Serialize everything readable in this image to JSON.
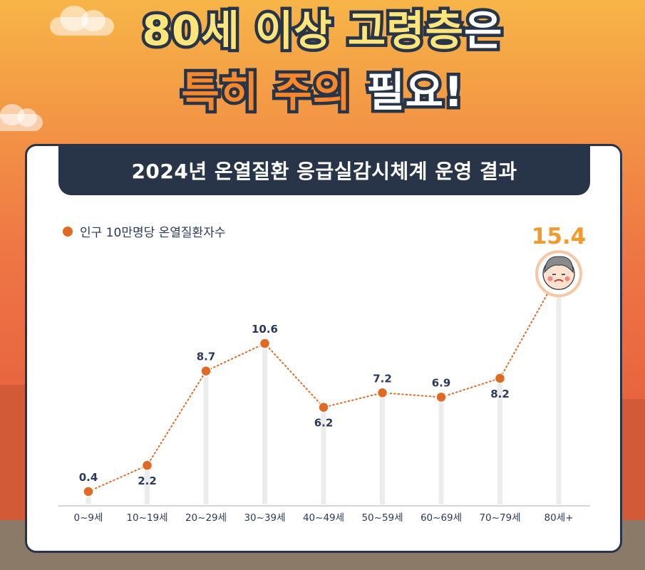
{
  "header": {
    "line1_a": "80세 이상 고령층",
    "line1_b": "은",
    "line2_a": "특히 주의",
    "line2_b": " 필요!"
  },
  "banner": {
    "title": "2024년 온열질환 응급실감시체계 운영 결과"
  },
  "colors": {
    "accent": "#e06a24",
    "navy": "#283548",
    "headline_yellow": "#fde57c",
    "headline_orange": "#f7872b",
    "peak_value": "#f39a2e"
  },
  "chart_data": {
    "type": "line",
    "categories": [
      "0~9세",
      "10~19세",
      "20~29세",
      "30~39세",
      "40~49세",
      "50~59세",
      "60~69세",
      "70~79세",
      "80세+"
    ],
    "series": [
      {
        "name": "인구 10만명당 온열질환자수",
        "values": [
          0.4,
          2.2,
          8.7,
          10.6,
          6.2,
          7.2,
          6.9,
          8.2,
          15.4
        ]
      }
    ],
    "data_labels": [
      "0.4",
      "2.2",
      "8.7",
      "10.6",
      "6.2",
      "7.2",
      "6.9",
      "8.2",
      "15.4"
    ],
    "title": "2024년 온열질환 응급실감시체계 운영 결과",
    "xlabel": "",
    "ylabel": "",
    "ylim": [
      0,
      16
    ],
    "grid": false,
    "legend": "top-left",
    "line_style": "dotted",
    "highlight_icon": "elderly-person-face-icon"
  }
}
